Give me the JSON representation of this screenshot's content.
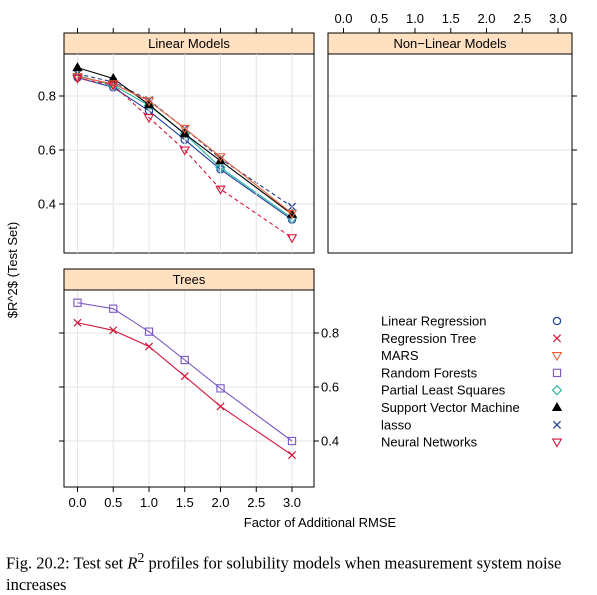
{
  "chart_data": {
    "type": "line",
    "ylabel": "$R^2$ (Test Set)",
    "xlabel": "Factor of Additional RMSE",
    "x": [
      0.0,
      0.5,
      1.0,
      1.5,
      2.0,
      3.0
    ],
    "x_ticks": [
      "0.0",
      "0.5",
      "1.0",
      "1.5",
      "2.0",
      "2.5",
      "3.0"
    ],
    "y_ticks": [
      "0.4",
      "0.6",
      "0.8"
    ],
    "xlim": [
      -0.22,
      3.22
    ],
    "ylim": [
      0.25,
      0.95
    ],
    "panels": [
      {
        "id": "linear",
        "title": "Linear Models",
        "series": [
          {
            "name": "Linear Regression",
            "color": "#1f3f9f",
            "marker": "circle",
            "dashed": false,
            "values": [
              0.868,
              0.832,
              0.745,
              0.638,
              0.528,
              0.342
            ]
          },
          {
            "name": "Partial Least Squares",
            "color": "#2ab6a0",
            "marker": "diamond",
            "dashed": false,
            "values": [
              0.876,
              0.84,
              0.765,
              0.66,
              0.535,
              0.348
            ]
          },
          {
            "name": "lasso",
            "color": "#203c8c",
            "marker": "x",
            "dashed": true,
            "values": [
              0.882,
              0.852,
              0.785,
              0.68,
              0.568,
              0.39
            ]
          }
        ]
      },
      {
        "id": "nonlinear",
        "title": "Non−Linear Models",
        "series": [
          {
            "name": "Support Vector Machine",
            "color": "#000000",
            "marker": "triangle",
            "dashed": false,
            "values": [
              0.905,
              0.865,
              0.768,
              0.66,
              0.56,
              0.362
            ]
          },
          {
            "name": "MARS",
            "color": "#e8623a",
            "marker": "triangle-down",
            "dashed": false,
            "values": [
              0.872,
              0.845,
              0.782,
              0.68,
              0.575,
              0.365
            ]
          },
          {
            "name": "Neural Networks",
            "color": "#d4143a",
            "marker": "triangle-down",
            "dashed": true,
            "values": [
              0.866,
              0.84,
              0.72,
              0.6,
              0.455,
              0.275
            ]
          }
        ]
      },
      {
        "id": "trees",
        "title": "Trees",
        "series": [
          {
            "name": "Random Forests",
            "color": "#7b55c2",
            "marker": "square",
            "dashed": false,
            "values": [
              0.912,
              0.89,
              0.805,
              0.7,
              0.595,
              0.4
            ]
          },
          {
            "name": "Regression Tree",
            "color": "#d4143a",
            "marker": "x",
            "dashed": false,
            "values": [
              0.838,
              0.81,
              0.75,
              0.64,
              0.528,
              0.348
            ]
          }
        ]
      }
    ],
    "legend": [
      {
        "name": "Linear Regression",
        "color": "#1f3f9f",
        "marker": "circle"
      },
      {
        "name": "Regression Tree",
        "color": "#d4143a",
        "marker": "x"
      },
      {
        "name": "MARS",
        "color": "#e8623a",
        "marker": "triangle-down"
      },
      {
        "name": "Random Forests",
        "color": "#7b55c2",
        "marker": "square"
      },
      {
        "name": "Partial Least Squares",
        "color": "#2ab6a0",
        "marker": "diamond"
      },
      {
        "name": "Support Vector Machine",
        "color": "#000000",
        "marker": "triangle"
      },
      {
        "name": "lasso",
        "color": "#203c8c",
        "marker": "x"
      },
      {
        "name": "Neural Networks",
        "color": "#d4143a",
        "marker": "triangle-down"
      }
    ],
    "legend_placement": "bottom-right",
    "grid": true,
    "strip_color": "#ffe0c0"
  },
  "caption": {
    "label": "Fig. 20.2: Test set",
    "math": "R",
    "sup": "2",
    "text": "profiles for solubility models when measurement system noise increases"
  }
}
